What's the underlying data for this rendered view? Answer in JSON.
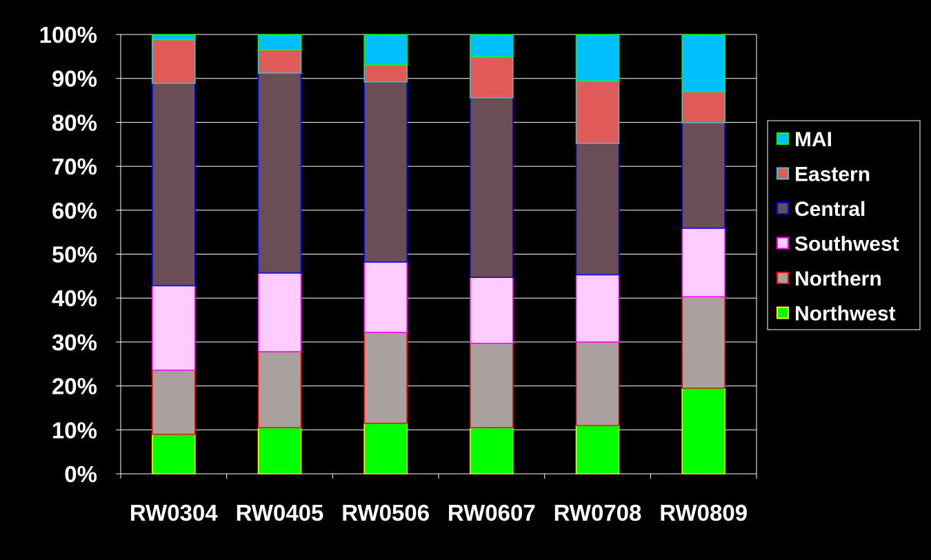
{
  "chart_data": {
    "type": "bar",
    "stacked": true,
    "percent_stacked": true,
    "title": "",
    "xlabel": "",
    "ylabel": "",
    "ylim": [
      0,
      100
    ],
    "yticks": [
      "0%",
      "10%",
      "20%",
      "30%",
      "40%",
      "50%",
      "60%",
      "70%",
      "80%",
      "90%",
      "100%"
    ],
    "grid": true,
    "legend_position": "right",
    "categories": [
      "RW0304",
      "RW0405",
      "RW0506",
      "RW0607",
      "RW0708",
      "RW0809"
    ],
    "series": [
      {
        "name": "Northwest",
        "fill": "#00ff00",
        "stroke": "#ffff00",
        "values": [
          9.0,
          10.5,
          11.5,
          10.5,
          11.0,
          19.5
        ]
      },
      {
        "name": "Northern",
        "fill": "#aaa0a0",
        "stroke": "#ff0000",
        "values": [
          14.6,
          17.3,
          20.7,
          19.2,
          19.0,
          20.8
        ]
      },
      {
        "name": "Southwest",
        "fill": "#ffccff",
        "stroke": "#ff00ff",
        "values": [
          19.2,
          17.9,
          16.0,
          15.0,
          15.3,
          15.6
        ]
      },
      {
        "name": "Central",
        "fill": "#6b4e55",
        "stroke": "#0000ff",
        "values": [
          46.1,
          45.5,
          41.0,
          40.9,
          29.9,
          24.0
        ]
      },
      {
        "name": "Eastern",
        "fill": "#e05a5a",
        "stroke": "#33cccc",
        "values": [
          9.9,
          5.3,
          3.9,
          9.3,
          14.2,
          7.1
        ]
      },
      {
        "name": "MAI",
        "fill": "#00bfff",
        "stroke": "#00ff00",
        "values": [
          1.2,
          3.5,
          6.9,
          5.1,
          10.6,
          13.0
        ]
      }
    ],
    "legend_order": [
      "MAI",
      "Eastern",
      "Central",
      "Southwest",
      "Northern",
      "Northwest"
    ]
  }
}
